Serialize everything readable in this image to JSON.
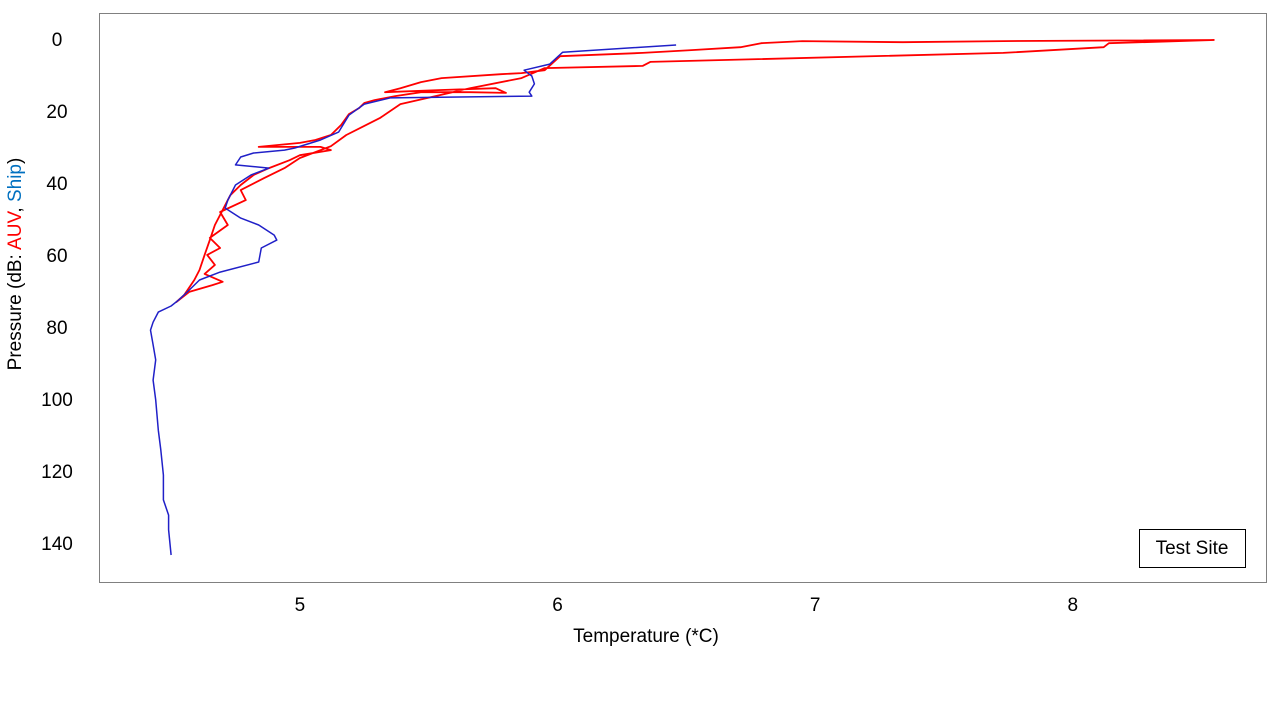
{
  "chart_data": {
    "type": "line",
    "xlabel": "Temperature (*C)",
    "ylabel_parts": [
      "Pressure (dB: ",
      ", ",
      ")"
    ],
    "annotation": "Test Site",
    "xlim": [
      4.22,
      8.75
    ],
    "xticks": [
      5,
      6,
      7,
      8
    ],
    "ylim": [
      -7.8,
      150.3
    ],
    "yticks": [
      0,
      20,
      40,
      60,
      80,
      100,
      120,
      140
    ],
    "y_inverted": true,
    "grid": false,
    "series": [
      {
        "name": "AUV",
        "color": "#ff0000",
        "x": [
          8.55,
          7.73,
          7.34,
          6.95,
          6.79,
          6.71,
          6.52,
          6.33,
          6.01,
          5.95,
          5.86,
          5.78,
          5.55,
          5.47,
          5.39,
          5.33,
          5.55,
          5.76,
          5.8,
          5.66,
          5.47,
          5.37,
          5.29,
          5.25,
          5.23,
          5.19,
          5.16,
          5.12,
          5.06,
          5.0,
          4.84,
          5.08,
          5.12,
          5.0,
          4.96,
          4.88,
          4.82,
          4.77,
          4.73,
          4.7,
          4.67,
          4.65,
          4.63,
          4.61,
          4.59,
          4.55,
          4.52,
          4.57,
          4.66,
          4.7,
          4.63,
          4.67,
          4.64,
          4.69,
          4.65,
          4.72,
          4.69,
          4.79,
          4.77,
          4.86,
          4.94,
          5.0,
          5.12,
          5.18,
          5.31,
          5.39,
          5.66,
          5.86,
          5.95,
          6.33,
          6.36,
          7.73,
          8.12,
          8.14,
          8.55
        ],
        "values": [
          -0.3,
          0,
          0.3,
          0,
          0.6,
          1.7,
          2.5,
          3.3,
          4.2,
          8.1,
          8.9,
          9.2,
          10.3,
          11.4,
          13.1,
          14.2,
          13.6,
          13.1,
          14.4,
          14.2,
          14.2,
          15.3,
          16.4,
          17.2,
          18.6,
          20.3,
          23.3,
          26.1,
          27.5,
          28.3,
          29.4,
          29.4,
          30.3,
          31.7,
          33.1,
          35.3,
          37.2,
          40.0,
          42.8,
          46.9,
          51.1,
          55.3,
          59.4,
          63.6,
          66.4,
          70.6,
          72.5,
          69.7,
          67.8,
          66.9,
          64.7,
          62.2,
          59.4,
          57.5,
          54.7,
          51.1,
          47.5,
          44.2,
          41.4,
          38.1,
          35.3,
          32.5,
          29.2,
          26.1,
          21.4,
          17.5,
          13.1,
          10.3,
          7.5,
          6.9,
          5.8,
          3.3,
          1.7,
          0.6,
          -0.3
        ]
      },
      {
        "name": "Ship",
        "color": "#2020c8",
        "label_color": "#0070c0",
        "x": [
          6.46,
          6.02,
          5.97,
          5.87,
          5.9,
          5.91,
          5.89,
          5.9,
          5.35,
          5.25,
          5.19,
          5.15,
          5.08,
          4.98,
          4.94,
          4.82,
          4.77,
          4.75,
          4.88,
          4.81,
          4.75,
          4.72,
          4.71,
          4.77,
          4.84,
          4.9,
          4.91,
          4.85,
          4.84,
          4.69,
          4.61,
          4.57,
          4.53,
          4.5,
          4.45,
          4.43,
          4.42,
          4.43,
          4.44,
          4.43,
          4.44,
          4.45,
          4.46,
          4.47,
          4.47,
          4.49,
          4.49,
          4.5
        ],
        "values": [
          1.1,
          3.1,
          6.4,
          8.1,
          9.7,
          11.9,
          14.2,
          15.3,
          15.8,
          17.5,
          20.6,
          25.3,
          27.5,
          29.7,
          30.3,
          31.1,
          32.2,
          34.4,
          35.3,
          37.2,
          40.0,
          44.2,
          46.4,
          49.2,
          51.1,
          53.9,
          55.3,
          57.5,
          61.4,
          64.2,
          66.4,
          69.2,
          71.9,
          73.6,
          75.3,
          78.1,
          80.3,
          84.4,
          88.6,
          94.2,
          99.7,
          108.1,
          113.6,
          120.6,
          127.5,
          131.7,
          135.8,
          142.8
        ]
      }
    ]
  }
}
